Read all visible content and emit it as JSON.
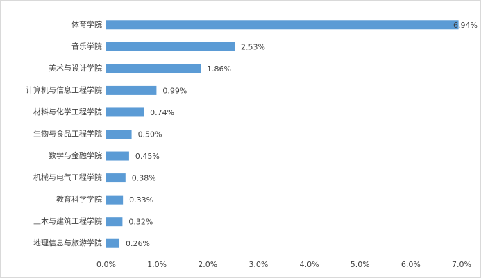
{
  "chart_data": {
    "type": "hbar",
    "categories": [
      "体育学院",
      "音乐学院",
      "美术与设计学院",
      "计算机与信息工程学院",
      "材料与化学工程学院",
      "生物与食品工程学院",
      "数学与金融学院",
      "机械与电气工程学院",
      "教育科学学院",
      "土木与建筑工程学院",
      "地理信息与旅游学院"
    ],
    "values": [
      6.94,
      2.53,
      1.86,
      0.99,
      0.74,
      0.5,
      0.45,
      0.38,
      0.33,
      0.32,
      0.26
    ],
    "value_labels": [
      "6.94%",
      "2.53%",
      "1.86%",
      "0.99%",
      "0.74%",
      "0.50%",
      "0.45%",
      "0.38%",
      "0.33%",
      "0.32%",
      "0.26%"
    ],
    "color": "#5b9bd5",
    "xlim": [
      0,
      7
    ],
    "xticks": [
      {
        "value": 0,
        "label": "0.0%"
      },
      {
        "value": 1,
        "label": "1.0%"
      },
      {
        "value": 2,
        "label": "2.0%"
      },
      {
        "value": 3,
        "label": "3.0%"
      },
      {
        "value": 4,
        "label": "4.0%"
      },
      {
        "value": 5,
        "label": "5.0%"
      },
      {
        "value": 6,
        "label": "6.0%"
      },
      {
        "value": 7,
        "label": "7.0%"
      }
    ],
    "grid": false
  }
}
